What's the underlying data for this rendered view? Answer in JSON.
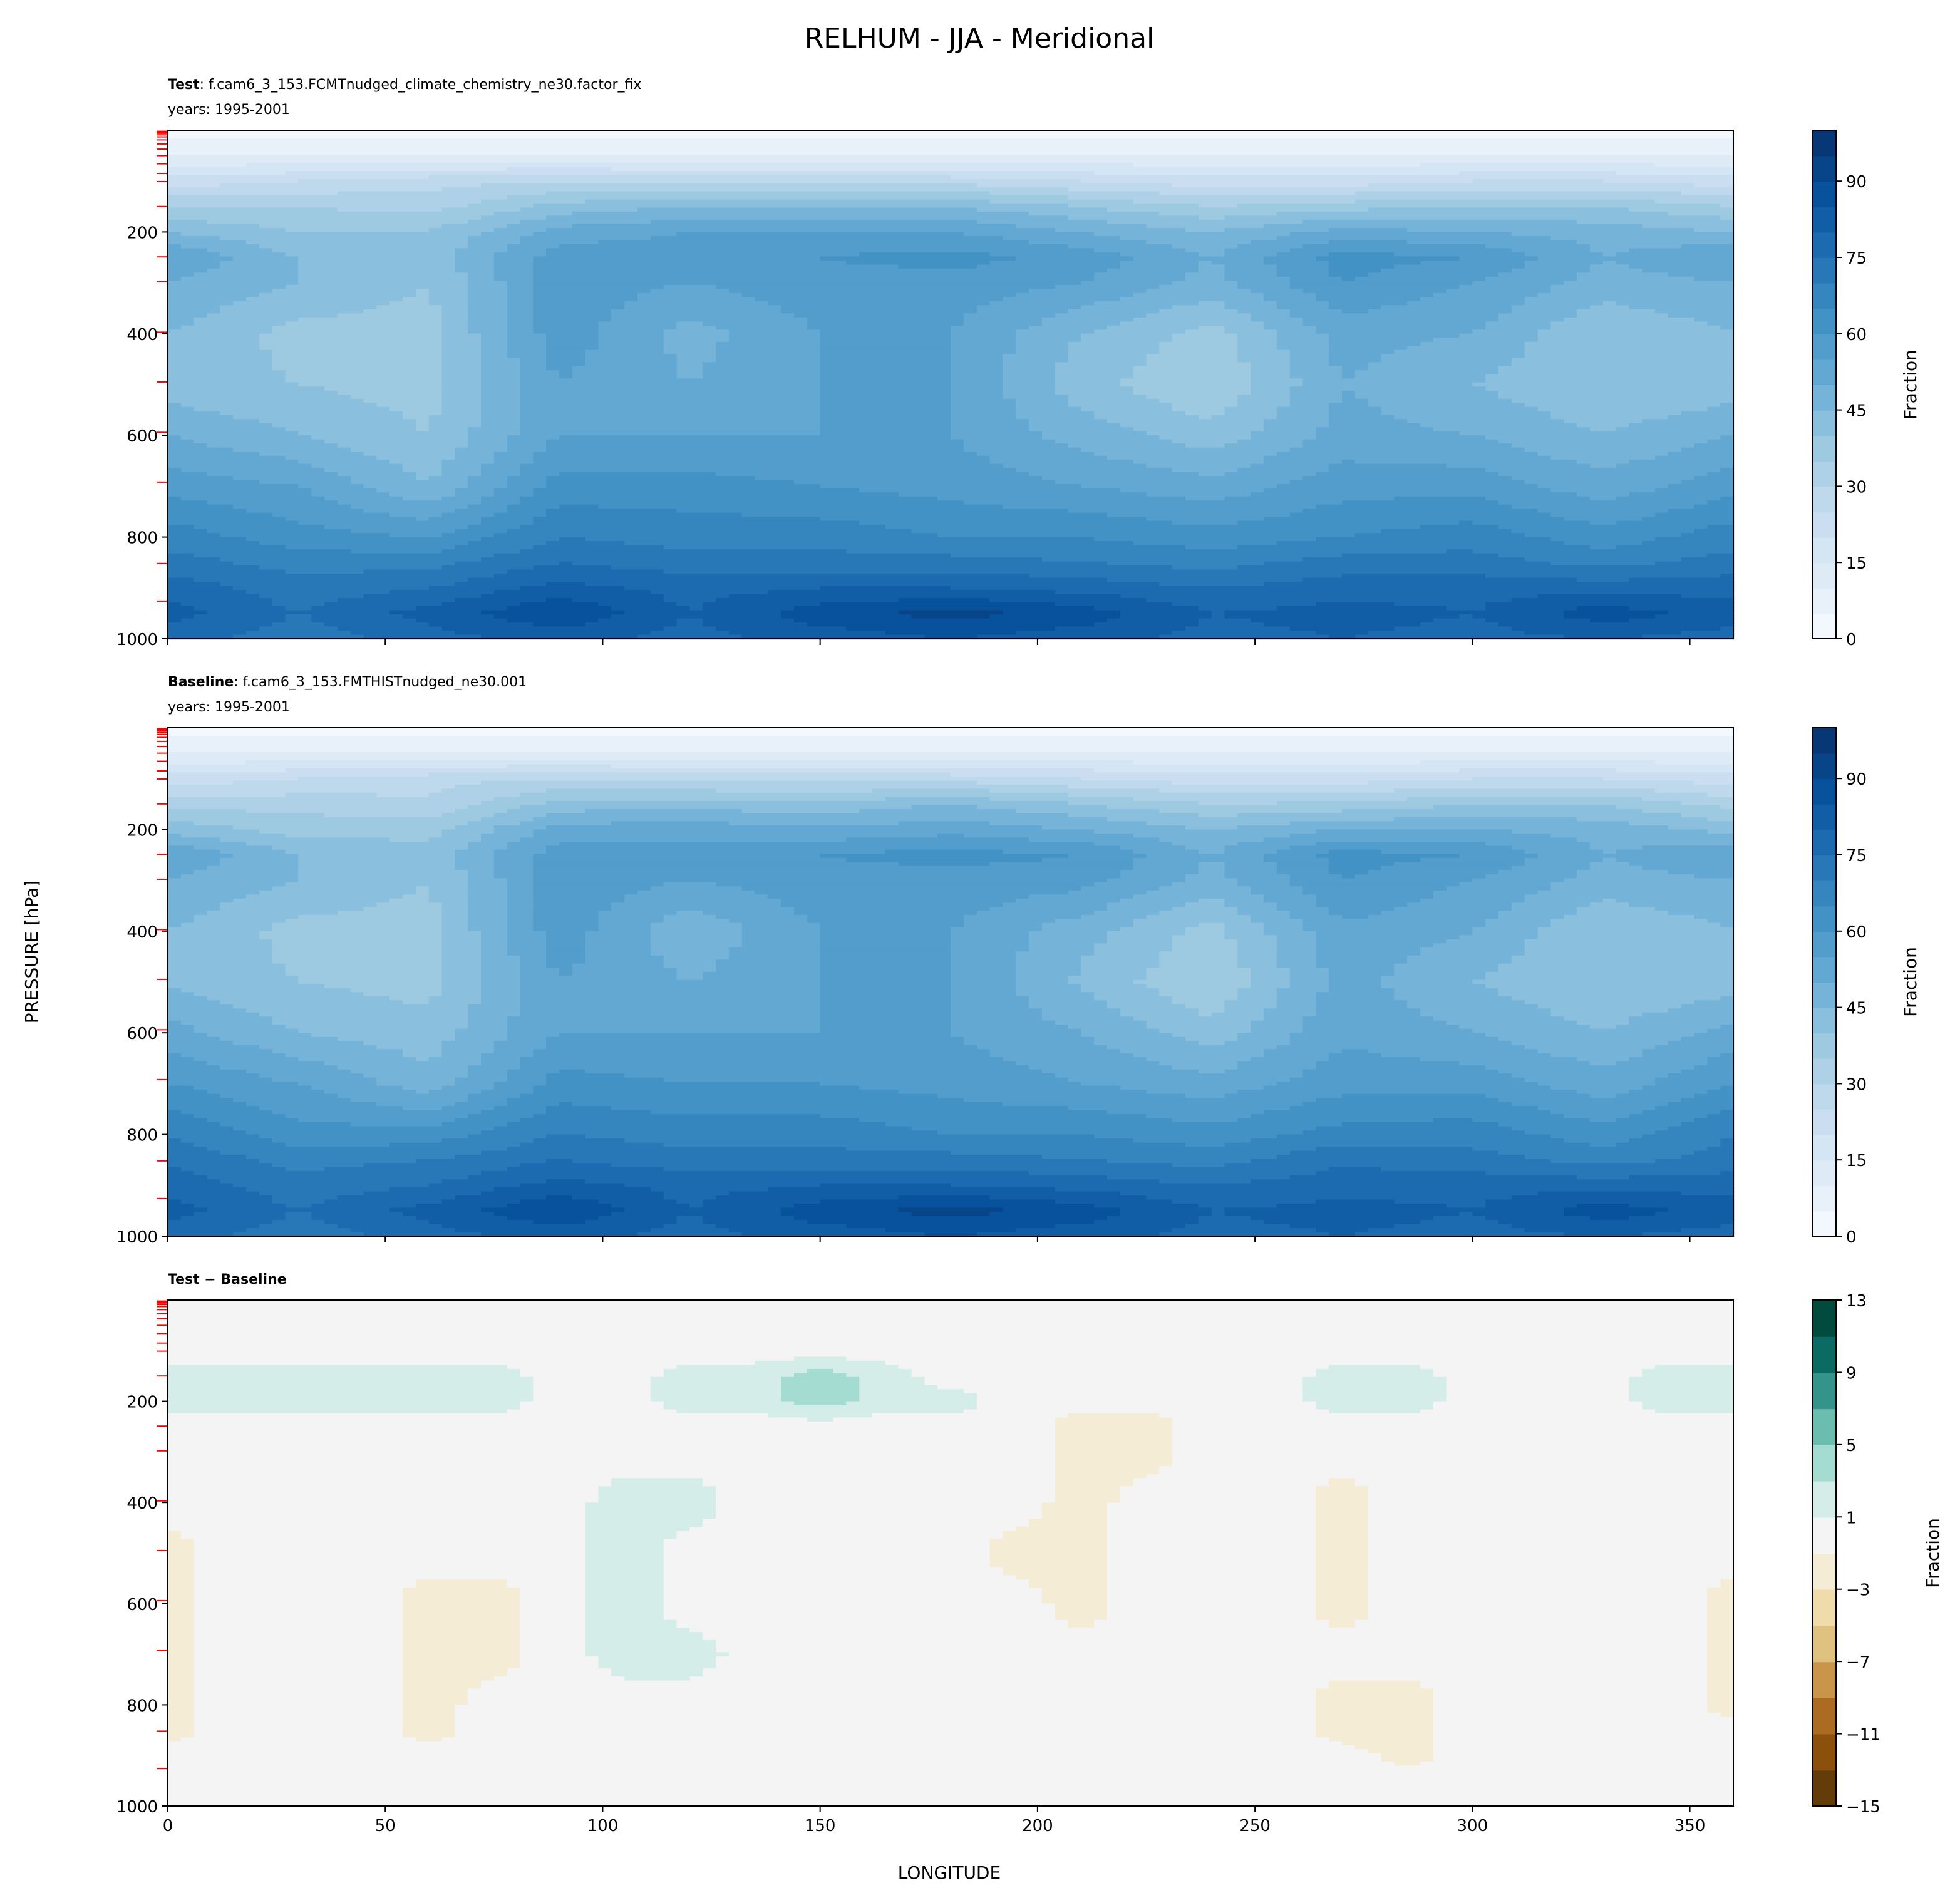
{
  "title": "RELHUM - JJA - Meridional",
  "panels": {
    "test": {
      "label": "Test",
      "case": ": f.cam6_3_153.FCMTnudged_climate_chemistry_ne30.factor_fix",
      "years": "years: 1995-2001"
    },
    "baseline": {
      "label": "Baseline",
      "case": ": f.cam6_3_153.FMTHISTnudged_ne30.001",
      "years": "years: 1995-2001"
    },
    "diff": {
      "label": "Test − Baseline"
    }
  },
  "axes": {
    "ylabel": "PRESSURE [hPa]",
    "xlabel": "LONGITUDE"
  },
  "chart_data": {
    "type": "heatmap",
    "subtype": "filled-contour",
    "xlim": [
      0,
      360
    ],
    "ylim": [
      1000,
      0
    ],
    "x_ticks": [
      "0",
      "50",
      "100",
      "150",
      "200",
      "250",
      "300",
      "350"
    ],
    "x_tick_values": [
      0,
      50,
      100,
      150,
      200,
      250,
      300,
      350
    ],
    "y_ticks": [
      "200",
      "400",
      "600",
      "800",
      "1000"
    ],
    "y_tick_values": [
      200,
      400,
      600,
      800,
      1000
    ],
    "model_levels_hPa": [
      2,
      4,
      6,
      9,
      13,
      19,
      27,
      37,
      50,
      66,
      85,
      101,
      150,
      249,
      298,
      397,
      495,
      594,
      692,
      852,
      926
    ],
    "levels": [
      0,
      50,
      100,
      150,
      200,
      250,
      300,
      400,
      500,
      600,
      700,
      800,
      850,
      900,
      950,
      1000
    ],
    "test_lons": [
      0,
      30,
      60,
      90,
      120,
      150,
      180,
      210,
      240,
      270,
      300,
      330,
      360
    ],
    "test_values": [
      [
        3,
        3,
        3,
        3,
        3,
        3,
        3,
        3,
        3,
        3,
        3,
        3,
        3
      ],
      [
        10,
        10,
        10,
        10,
        10,
        10,
        10,
        10,
        10,
        10,
        10,
        10,
        10
      ],
      [
        22,
        25,
        28,
        30,
        28,
        28,
        28,
        25,
        22,
        22,
        25,
        25,
        22
      ],
      [
        35,
        35,
        33,
        42,
        45,
        45,
        45,
        40,
        35,
        38,
        40,
        40,
        35
      ],
      [
        45,
        40,
        40,
        52,
        55,
        55,
        55,
        50,
        45,
        52,
        50,
        48,
        45
      ],
      [
        55,
        45,
        42,
        58,
        58,
        60,
        62,
        58,
        50,
        62,
        60,
        50,
        55
      ],
      [
        50,
        45,
        40,
        58,
        55,
        58,
        58,
        55,
        48,
        60,
        55,
        48,
        50
      ],
      [
        45,
        38,
        38,
        58,
        48,
        55,
        55,
        45,
        38,
        52,
        50,
        40,
        45
      ],
      [
        42,
        40,
        38,
        55,
        50,
        55,
        55,
        42,
        35,
        50,
        45,
        40,
        42
      ],
      [
        50,
        45,
        40,
        55,
        55,
        55,
        55,
        48,
        42,
        52,
        50,
        45,
        50
      ],
      [
        58,
        55,
        45,
        62,
        62,
        60,
        58,
        55,
        52,
        58,
        58,
        52,
        58
      ],
      [
        68,
        62,
        60,
        70,
        68,
        68,
        65,
        65,
        62,
        65,
        68,
        62,
        68
      ],
      [
        72,
        68,
        68,
        75,
        72,
        72,
        72,
        70,
        68,
        72,
        72,
        68,
        72
      ],
      [
        78,
        72,
        75,
        82,
        78,
        80,
        80,
        78,
        75,
        78,
        78,
        78,
        78
      ],
      [
        82,
        75,
        82,
        90,
        80,
        88,
        92,
        88,
        80,
        82,
        80,
        88,
        82
      ],
      [
        78,
        72,
        78,
        82,
        78,
        82,
        85,
        82,
        78,
        80,
        78,
        80,
        78
      ]
    ],
    "diff_lons": [
      0,
      15,
      30,
      45,
      60,
      75,
      90,
      105,
      120,
      135,
      150,
      165,
      180,
      195,
      210,
      225,
      240,
      255,
      270,
      285,
      300,
      315,
      330,
      345,
      360
    ],
    "diff_values": [
      [
        0,
        0,
        0,
        0,
        0,
        0,
        0,
        0,
        0,
        0,
        0,
        0,
        0,
        0,
        0,
        0,
        0,
        0,
        0,
        0,
        0,
        0,
        0,
        0,
        0
      ],
      [
        0,
        0,
        0,
        0,
        0,
        0,
        0,
        0,
        0,
        0,
        0,
        0,
        0,
        0,
        0,
        0,
        0,
        0,
        0,
        0,
        0,
        0,
        0,
        0,
        0
      ],
      [
        0,
        0,
        0,
        0,
        0,
        0,
        0,
        0,
        0,
        0,
        0,
        0,
        0,
        0,
        0,
        0,
        0,
        0,
        0,
        0,
        0,
        0,
        0,
        0,
        0
      ],
      [
        2,
        2,
        2,
        2,
        2,
        2,
        0,
        0,
        2,
        2,
        4,
        2,
        0,
        0,
        0,
        0,
        0,
        0,
        2,
        2,
        0,
        0,
        0,
        2,
        2
      ],
      [
        2,
        2,
        2,
        2,
        2,
        2,
        0,
        0,
        2,
        2,
        4,
        2,
        2,
        0,
        0,
        0,
        0,
        0,
        2,
        2,
        0,
        0,
        0,
        2,
        2
      ],
      [
        0,
        0,
        0,
        0,
        0,
        0,
        0,
        0,
        0,
        0,
        0,
        0,
        0,
        0,
        -2,
        -2,
        0,
        0,
        0,
        0,
        0,
        0,
        0,
        0,
        0
      ],
      [
        0,
        0,
        0,
        0,
        0,
        0,
        0,
        0,
        0,
        0,
        0,
        0,
        0,
        0,
        -2,
        -2,
        0,
        0,
        0,
        0,
        0,
        0,
        0,
        0,
        0
      ],
      [
        0,
        0,
        0,
        0,
        0,
        0,
        0,
        2,
        2,
        0,
        0,
        0,
        0,
        0,
        -2,
        0,
        0,
        0,
        -2,
        0,
        0,
        0,
        0,
        0,
        0
      ],
      [
        -2,
        0,
        0,
        0,
        0,
        0,
        0,
        2,
        0,
        0,
        0,
        0,
        0,
        -2,
        -2,
        0,
        0,
        0,
        -2,
        0,
        0,
        0,
        0,
        0,
        0
      ],
      [
        -2,
        0,
        0,
        0,
        -2,
        -2,
        0,
        2,
        0,
        0,
        0,
        0,
        0,
        0,
        -2,
        0,
        0,
        0,
        -2,
        0,
        0,
        0,
        0,
        0,
        -2
      ],
      [
        -2,
        0,
        0,
        0,
        -2,
        -2,
        0,
        2,
        2,
        0,
        0,
        0,
        0,
        0,
        0,
        0,
        0,
        0,
        0,
        0,
        0,
        0,
        0,
        0,
        -2
      ],
      [
        -2,
        0,
        0,
        0,
        -2,
        0,
        0,
        0,
        0,
        0,
        0,
        0,
        0,
        0,
        0,
        0,
        0,
        0,
        -2,
        -2,
        0,
        0,
        0,
        0,
        -2
      ],
      [
        -2,
        0,
        0,
        0,
        -2,
        0,
        0,
        0,
        0,
        0,
        0,
        0,
        0,
        0,
        0,
        0,
        0,
        0,
        -2,
        -2,
        0,
        0,
        0,
        0,
        0
      ],
      [
        0,
        0,
        0,
        0,
        0,
        0,
        0,
        0,
        0,
        0,
        0,
        0,
        0,
        0,
        0,
        0,
        0,
        0,
        0,
        -2,
        0,
        0,
        0,
        0,
        0
      ],
      [
        0,
        0,
        0,
        0,
        0,
        0,
        0,
        0,
        0,
        0,
        0,
        0,
        0,
        0,
        0,
        0,
        0,
        0,
        0,
        0,
        0,
        0,
        0,
        0,
        0
      ],
      [
        0,
        0,
        0,
        0,
        0,
        0,
        0,
        0,
        0,
        0,
        0,
        0,
        0,
        0,
        0,
        0,
        0,
        0,
        0,
        0,
        0,
        0,
        0,
        0,
        0
      ]
    ],
    "baseline_note": "baseline = test - diff",
    "colorbar_main": {
      "label": "Fraction",
      "min": 0,
      "max": 100,
      "step": 5,
      "ticks": [
        "0",
        "15",
        "30",
        "45",
        "60",
        "75",
        "90"
      ],
      "tick_values": [
        0,
        15,
        30,
        45,
        60,
        75,
        90
      ],
      "colormap_stops": [
        "#f7fbff",
        "#deebf7",
        "#c6dbef",
        "#9ecae1",
        "#6baed6",
        "#4292c6",
        "#2171b5",
        "#08519c",
        "#08306b"
      ]
    },
    "colorbar_diff": {
      "label": "Fraction",
      "min": -15,
      "max": 13,
      "step": 2,
      "ticks": [
        "13",
        "9",
        "5",
        "1",
        "−3",
        "−7",
        "−11",
        "−15"
      ],
      "tick_values": [
        13,
        9,
        5,
        1,
        -3,
        -7,
        -11,
        -15
      ],
      "colors": [
        "#633c0a",
        "#8b500c",
        "#ab6b22",
        "#c8954a",
        "#dfc27f",
        "#efdcaa",
        "#f5ecd6",
        "#f3f4f3",
        "#d4ede8",
        "#a4dcd2",
        "#6bbdb0",
        "#34938a",
        "#0b6b63",
        "#004b3d"
      ]
    },
    "model_level_tick_color": "#ff0000"
  }
}
